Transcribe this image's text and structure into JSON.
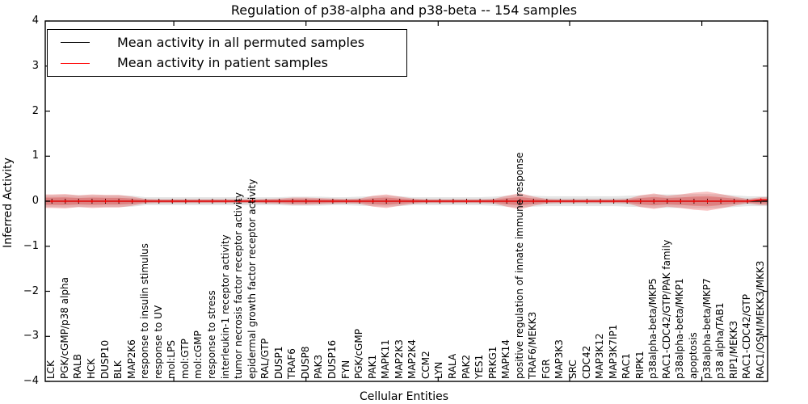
{
  "chart_data": {
    "type": "area",
    "title": "Regulation of p38-alpha and p38-beta -- 154 samples",
    "xlabel": "Cellular Entities",
    "ylabel": "Inferred Activity",
    "ylim": [
      -4,
      4
    ],
    "yticks": [
      "4",
      "3",
      "2",
      "1",
      "0",
      "−1",
      "−2",
      "−3",
      "−4"
    ],
    "grid": false,
    "legend_position": "upper left",
    "categories": [
      "LCK",
      "PGK/cGMP/p38 alpha",
      "RALB",
      "HCK",
      "DUSP10",
      "BLK",
      "MAP2K6",
      "response to insulin stimulus",
      "response to UV",
      "mol:LPS",
      "mol:GTP",
      "mol:cGMP",
      "response to stress",
      "interleukin-1 receptor activity",
      "tumor necrosis factor receptor activity",
      "epidermal growth factor receptor activity",
      "RAL/GTP",
      "DUSP1",
      "TRAF6",
      "DUSP8",
      "PAK3",
      "DUSP16",
      "FYN",
      "PGK/cGMP",
      "PAK1",
      "MAPK11",
      "MAP2K3",
      "MAP2K4",
      "CCM2",
      "LYN",
      "RALA",
      "PAK2",
      "YES1",
      "PRKG1",
      "MAPK14",
      "positive regulation of innate immune response",
      "TRAF6/MEKK3",
      "FGR",
      "MAP3K3",
      "SRC",
      "CDC42",
      "MAP3K12",
      "MAP3K7IP1",
      "RAC1",
      "RIPK1",
      "p38alpha-beta/MKP5",
      "RAC1-CDC42/GTP/PAK family",
      "p38alpha-beta/MKP1",
      "apoptosis",
      "p38alpha-beta/MKP7",
      "p38 alpha/TAB1",
      "RIP1/MEKK3",
      "RAC1-CDC42/GTP",
      "RAC1/OSM/MEKK3/MKK3"
    ],
    "series": [
      {
        "name": "Mean activity in all permuted samples",
        "color": "#000000",
        "values": [
          0,
          0,
          0,
          0,
          0,
          0,
          0,
          0,
          0,
          0,
          0,
          0,
          0,
          0,
          0,
          0,
          0,
          0,
          0,
          0,
          0,
          0,
          0,
          0,
          0,
          0,
          0,
          0,
          0,
          0,
          0,
          0,
          0,
          0,
          0,
          0,
          0,
          0,
          0,
          0,
          0,
          0,
          0,
          0,
          0,
          0,
          0,
          0,
          0,
          0,
          0,
          0,
          0,
          0
        ]
      },
      {
        "name": "Mean activity in patient samples",
        "color": "#ff0000",
        "values": [
          0,
          0,
          0,
          0,
          0,
          0,
          0,
          0,
          0,
          0,
          0,
          0,
          0,
          0,
          0,
          0,
          0,
          0,
          0,
          0,
          0,
          0,
          0,
          0,
          0,
          0,
          0,
          0,
          0,
          0,
          0,
          0,
          0,
          0,
          0,
          0,
          0,
          0,
          0,
          0,
          0,
          0,
          0,
          0,
          0,
          0,
          0,
          0,
          0,
          0,
          0,
          0,
          0,
          0.03
        ]
      }
    ],
    "bands": [
      {
        "name": "permuted-samples-spread",
        "color": "#bdbdbd",
        "opacity": 0.4,
        "half_widths": [
          0.13,
          0.14,
          0.13,
          0.13,
          0.13,
          0.13,
          0.12,
          0.09,
          0.09,
          0.09,
          0.09,
          0.09,
          0.09,
          0.09,
          0.09,
          0.09,
          0.09,
          0.09,
          0.1,
          0.1,
          0.1,
          0.09,
          0.09,
          0.1,
          0.11,
          0.12,
          0.11,
          0.09,
          0.09,
          0.09,
          0.09,
          0.09,
          0.09,
          0.1,
          0.12,
          0.14,
          0.12,
          0.11,
          0.11,
          0.11,
          0.11,
          0.11,
          0.11,
          0.12,
          0.13,
          0.15,
          0.15,
          0.15,
          0.16,
          0.16,
          0.15,
          0.13,
          0.11,
          0.11
        ]
      },
      {
        "name": "patient-samples-spread",
        "color": "#e63232",
        "opacity": 0.3,
        "half_widths": [
          0.15,
          0.16,
          0.13,
          0.15,
          0.14,
          0.14,
          0.1,
          0.05,
          0.04,
          0.04,
          0.04,
          0.04,
          0.04,
          0.04,
          0.04,
          0.04,
          0.05,
          0.06,
          0.08,
          0.08,
          0.07,
          0.06,
          0.05,
          0.06,
          0.12,
          0.15,
          0.1,
          0.06,
          0.04,
          0.04,
          0.04,
          0.04,
          0.04,
          0.05,
          0.12,
          0.18,
          0.1,
          0.05,
          0.04,
          0.04,
          0.04,
          0.04,
          0.04,
          0.05,
          0.13,
          0.17,
          0.12,
          0.15,
          0.19,
          0.21,
          0.16,
          0.1,
          0.05,
          0.09
        ]
      }
    ]
  }
}
